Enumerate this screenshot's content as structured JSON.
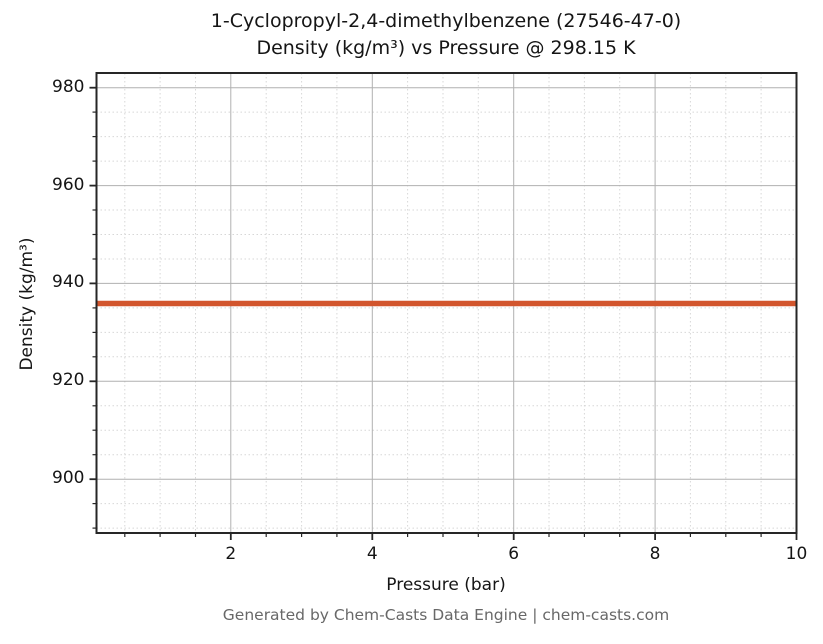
{
  "chart_data": {
    "type": "line",
    "title_line1": "1-Cyclopropyl-2,4-dimethylbenzene (27546-47-0)",
    "title_line2": "Density (kg/m³) vs Pressure @ 298.15 K",
    "xlabel": "Pressure (bar)",
    "ylabel": "Density (kg/m³)",
    "xlim": [
      0.1,
      10
    ],
    "ylim": [
      889,
      983
    ],
    "x_major_ticks": [
      2,
      4,
      6,
      8,
      10
    ],
    "x_minor_step": 0.5,
    "y_major_ticks": [
      900,
      920,
      940,
      960,
      980
    ],
    "y_minor_step": 5,
    "grid": "major-solid minor-dotted",
    "legend": "none",
    "series": [
      {
        "name": "density",
        "x": [
          0.1,
          1,
          2,
          3,
          4,
          5,
          6,
          7,
          8,
          9,
          10
        ],
        "y": [
          935.9,
          935.9,
          935.9,
          935.9,
          935.9,
          935.9,
          935.9,
          935.9,
          935.9,
          935.9,
          935.9
        ],
        "color": "#d2552d"
      }
    ],
    "colors": {
      "line": "#d2552d",
      "grid_major": "#b0b0b0",
      "grid_minor": "#d7d7d7",
      "spine": "#262626",
      "text": "#151515",
      "footer_text": "#686868"
    }
  },
  "footer": {
    "text": "Generated by Chem-Casts Data Engine | chem-casts.com"
  }
}
